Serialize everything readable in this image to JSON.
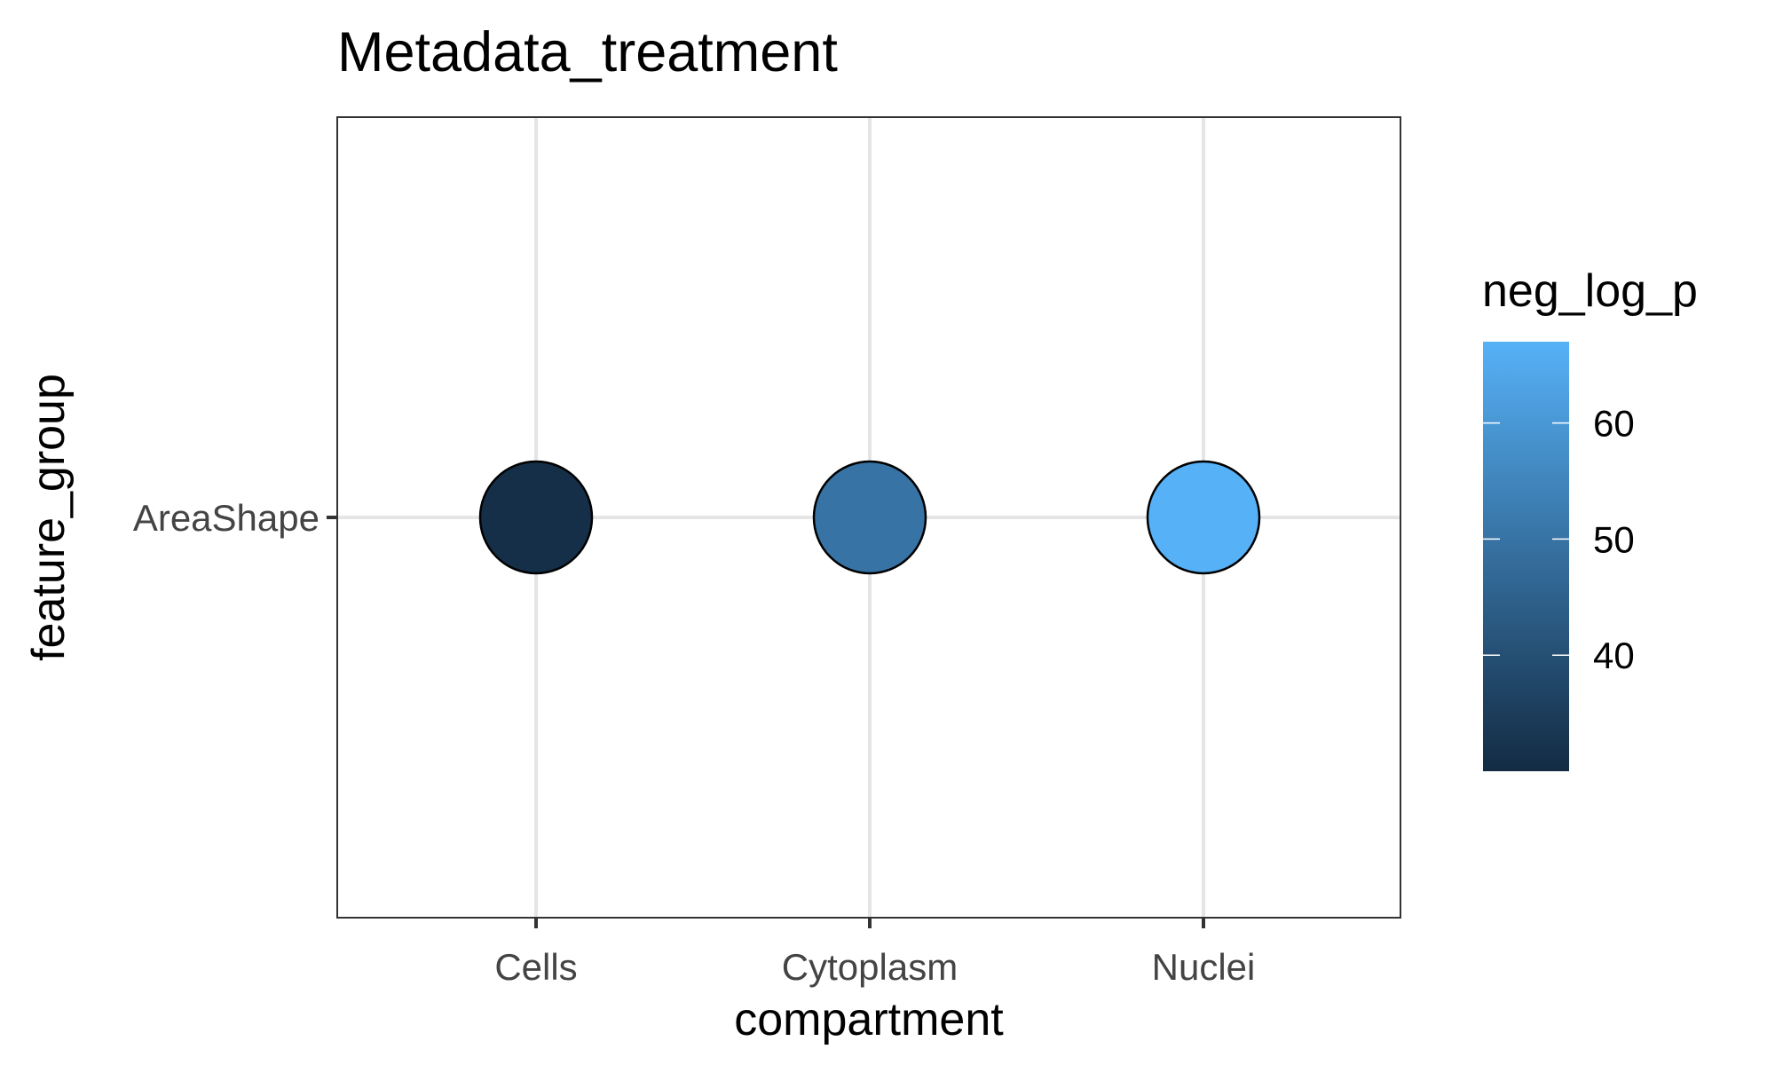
{
  "chart_data": {
    "type": "scatter",
    "title": "Metadata_treatment",
    "xlabel": "compartment",
    "ylabel": "feature_group",
    "x_categories": [
      "Cells",
      "Cytoplasm",
      "Nuclei"
    ],
    "y_categories": [
      "AreaShape"
    ],
    "points": [
      {
        "x": "Cells",
        "y": "AreaShape",
        "neg_log_p": 31
      },
      {
        "x": "Cytoplasm",
        "y": "AreaShape",
        "neg_log_p": 50
      },
      {
        "x": "Nuclei",
        "y": "AreaShape",
        "neg_log_p": 67
      }
    ],
    "legend": {
      "title": "neg_log_p",
      "placement": "right",
      "range": [
        30,
        67
      ],
      "ticks": [
        40,
        50,
        60
      ],
      "tick_labels": [
        "40",
        "50",
        "60"
      ],
      "color_low": "#132B43",
      "color_high": "#56B1F7"
    },
    "grid": true,
    "point_outline_color": "#000000"
  }
}
